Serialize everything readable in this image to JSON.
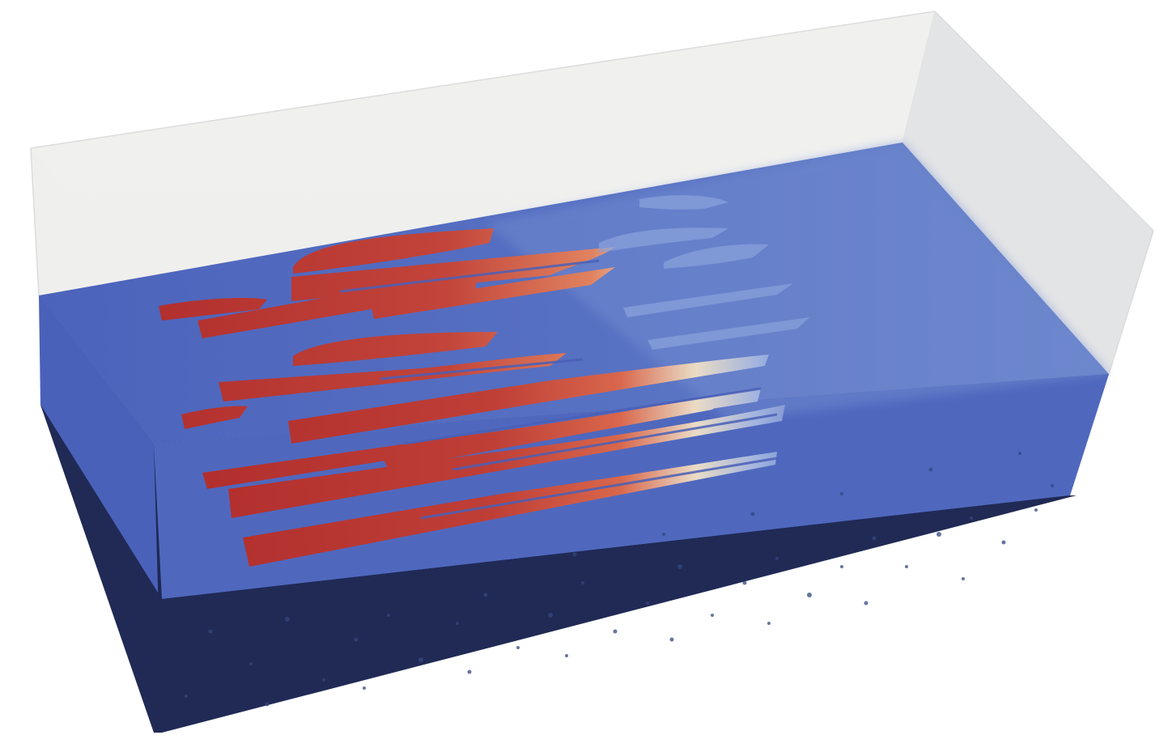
{
  "scene": {
    "background": "#ffffff",
    "colors": {
      "frame_top": "#eeeeed",
      "frame_back": "#f2f2f1",
      "frame_left": "#e6e7e9",
      "frame_right": "#e2e3e5",
      "frame_edge": "#d8d8d8",
      "slab_top": "#5b74c5",
      "slab_top_far": "#6f8ad0",
      "slab_front": "#1f2a52",
      "slab_front_light": "#2a3a6e",
      "slab_left": "#4a62bc",
      "slab_right": "#4e63a8",
      "hot": "#b8302f",
      "warm": "#de7a5a",
      "neutral": "#e8dcc8",
      "cool": "#9ab0e0",
      "cold": "#6b86cc",
      "speckle": "#34467a"
    },
    "description_icons": [
      "transparent-bounding-box",
      "blue-slab",
      "red-streaks",
      "dark-front-face"
    ]
  }
}
